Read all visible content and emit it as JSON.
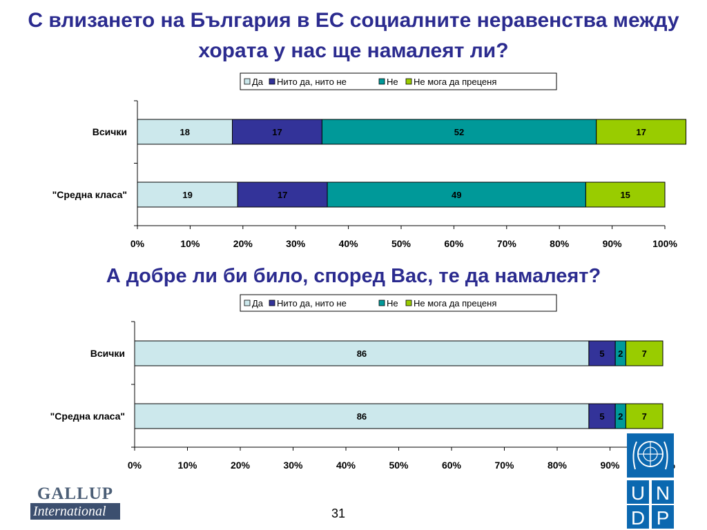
{
  "titles": {
    "main": "С влизането на България в ЕС социалните неравенства между хората у нас ще намалеят ли?",
    "second": "А добре ли би било, според Вас, те да намалеят?"
  },
  "chart_data": [
    {
      "type": "bar",
      "orientation": "horizontal",
      "stacked": true,
      "title": "С влизането на България в ЕС социалните неравенства между хората у нас ще намалеят ли?",
      "categories": [
        "Всички",
        "\"Средна класа\""
      ],
      "series": [
        {
          "name": "Да",
          "color": "#cce8ec",
          "values": [
            18,
            19
          ]
        },
        {
          "name": "Нито да, нито не",
          "color": "#333399",
          "values": [
            17,
            17
          ]
        },
        {
          "name": "Не",
          "color": "#009999",
          "values": [
            52,
            49
          ]
        },
        {
          "name": "Не мога да преценя",
          "color": "#99cc00",
          "values": [
            17,
            15
          ]
        }
      ],
      "xlim": [
        0,
        100
      ],
      "x_ticks": [
        "0%",
        "10%",
        "20%",
        "30%",
        "40%",
        "50%",
        "60%",
        "70%",
        "80%",
        "90%",
        "100%"
      ],
      "legend": "top",
      "grid": false
    },
    {
      "type": "bar",
      "orientation": "horizontal",
      "stacked": true,
      "title": "А добре ли би било, според Вас, те да намалеят?",
      "categories": [
        "Всички",
        "\"Средна класа\""
      ],
      "series": [
        {
          "name": "Да",
          "color": "#cce8ec",
          "values": [
            86,
            86
          ]
        },
        {
          "name": "Нито да, нито не",
          "color": "#333399",
          "values": [
            5,
            5
          ]
        },
        {
          "name": "Не",
          "color": "#009999",
          "values": [
            2,
            2
          ]
        },
        {
          "name": "Не мога да преценя",
          "color": "#99cc00",
          "values": [
            7,
            7
          ]
        }
      ],
      "xlim": [
        0,
        100
      ],
      "x_ticks": [
        "0%",
        "10%",
        "20%",
        "30%",
        "40%",
        "50%",
        "60%",
        "70%",
        "80%",
        "90%",
        "100%"
      ],
      "legend": "top",
      "grid": false
    }
  ],
  "footer": {
    "page_number": "31",
    "gallup_top": "GALLUP",
    "gallup_bottom": "International",
    "undp_letters": [
      "U",
      "N",
      "D",
      "P"
    ],
    "undp_color": "#0b68b0"
  }
}
